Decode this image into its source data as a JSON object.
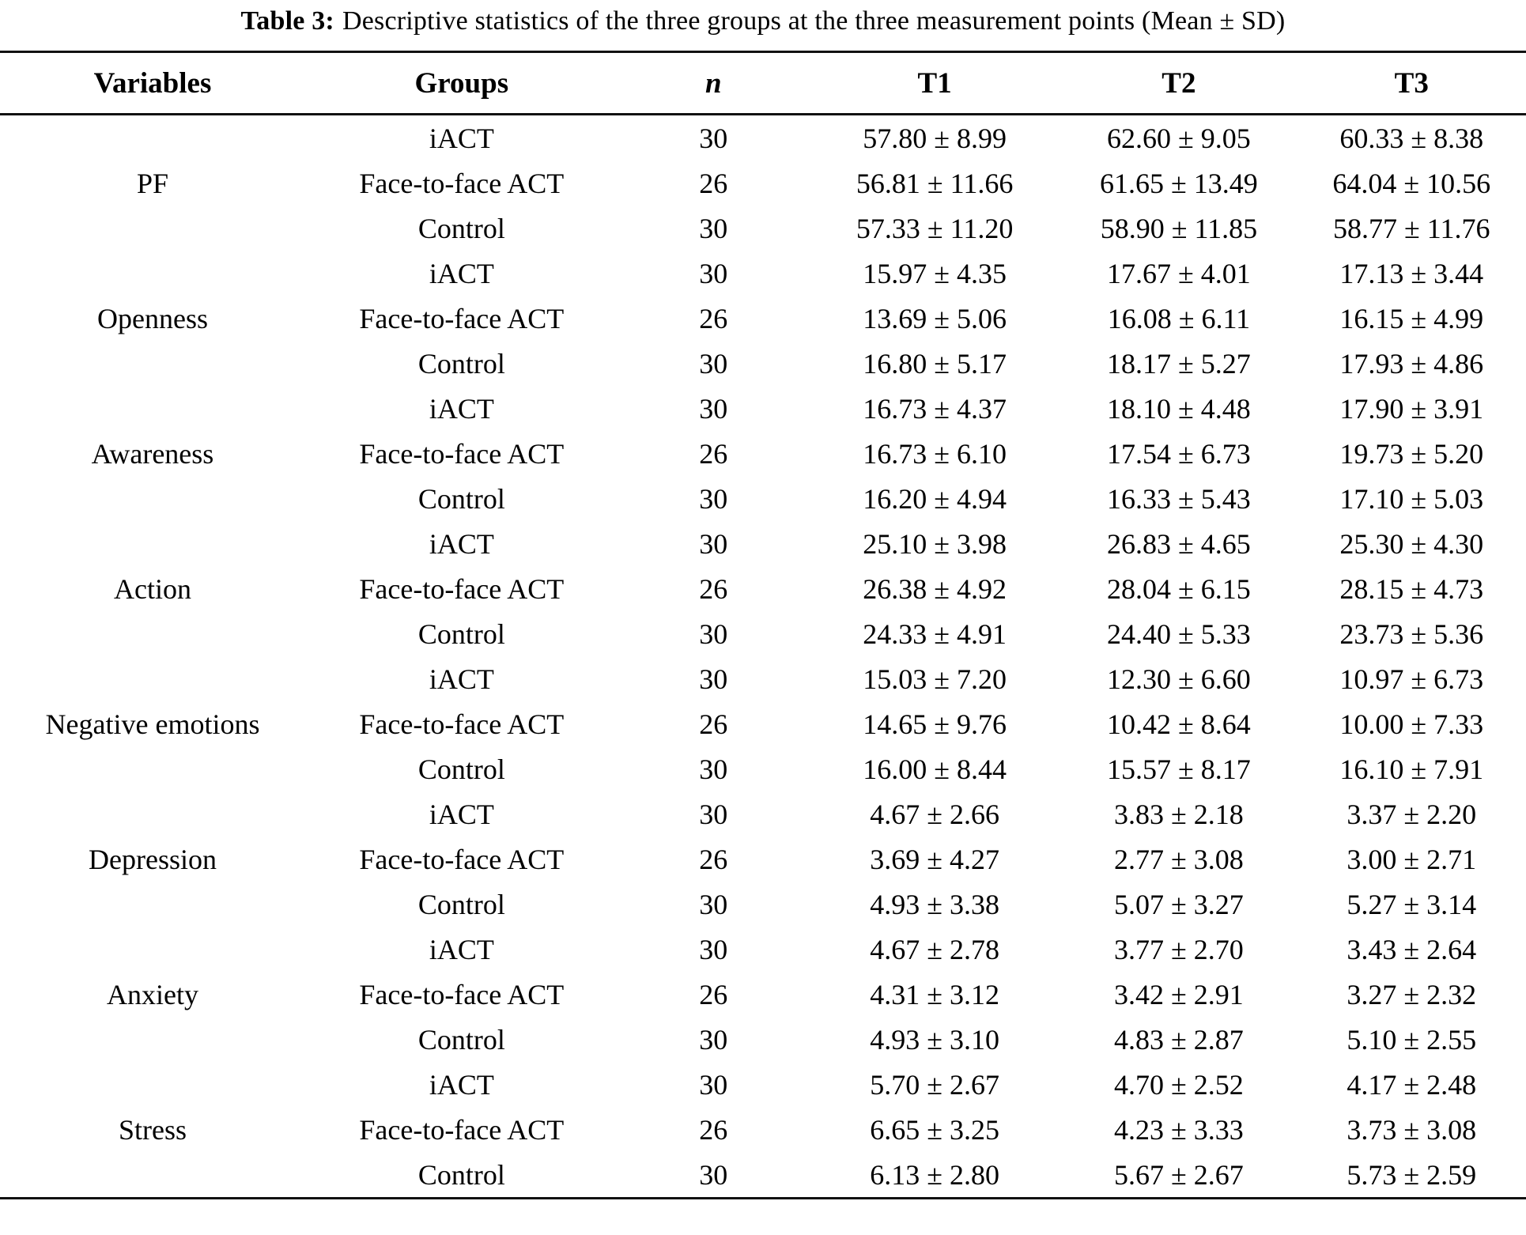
{
  "title": {
    "label": "Table 3:",
    "text": "Descriptive statistics of the three groups at the three measurement points (Mean ± SD)"
  },
  "table": {
    "columns": [
      "Variables",
      "Groups",
      "n",
      "T1",
      "T2",
      "T3"
    ],
    "variables": [
      {
        "name": "PF",
        "rows": [
          {
            "group": "iACT",
            "n": "30",
            "t1": "57.80 ± 8.99",
            "t2": "62.60 ± 9.05",
            "t3": "60.33 ± 8.38"
          },
          {
            "group": "Face-to-face ACT",
            "n": "26",
            "t1": "56.81 ± 11.66",
            "t2": "61.65 ± 13.49",
            "t3": "64.04 ± 10.56"
          },
          {
            "group": "Control",
            "n": "30",
            "t1": "57.33 ± 11.20",
            "t2": "58.90 ± 11.85",
            "t3": "58.77 ± 11.76"
          }
        ]
      },
      {
        "name": "Openness",
        "rows": [
          {
            "group": "iACT",
            "n": "30",
            "t1": "15.97 ± 4.35",
            "t2": "17.67 ± 4.01",
            "t3": "17.13 ± 3.44"
          },
          {
            "group": "Face-to-face ACT",
            "n": "26",
            "t1": "13.69 ± 5.06",
            "t2": "16.08 ± 6.11",
            "t3": "16.15 ± 4.99"
          },
          {
            "group": "Control",
            "n": "30",
            "t1": "16.80 ± 5.17",
            "t2": "18.17 ± 5.27",
            "t3": "17.93 ± 4.86"
          }
        ]
      },
      {
        "name": "Awareness",
        "rows": [
          {
            "group": "iACT",
            "n": "30",
            "t1": "16.73 ± 4.37",
            "t2": "18.10 ± 4.48",
            "t3": "17.90 ± 3.91"
          },
          {
            "group": "Face-to-face ACT",
            "n": "26",
            "t1": "16.73 ± 6.10",
            "t2": "17.54 ± 6.73",
            "t3": "19.73 ± 5.20"
          },
          {
            "group": "Control",
            "n": "30",
            "t1": "16.20 ± 4.94",
            "t2": "16.33 ± 5.43",
            "t3": "17.10 ± 5.03"
          }
        ]
      },
      {
        "name": "Action",
        "rows": [
          {
            "group": "iACT",
            "n": "30",
            "t1": "25.10 ± 3.98",
            "t2": "26.83 ± 4.65",
            "t3": "25.30 ± 4.30"
          },
          {
            "group": "Face-to-face ACT",
            "n": "26",
            "t1": "26.38 ± 4.92",
            "t2": "28.04 ± 6.15",
            "t3": "28.15 ± 4.73"
          },
          {
            "group": "Control",
            "n": "30",
            "t1": "24.33 ± 4.91",
            "t2": "24.40 ± 5.33",
            "t3": "23.73 ± 5.36"
          }
        ]
      },
      {
        "name": "Negative emotions",
        "rows": [
          {
            "group": "iACT",
            "n": "30",
            "t1": "15.03 ± 7.20",
            "t2": "12.30 ± 6.60",
            "t3": "10.97 ± 6.73"
          },
          {
            "group": "Face-to-face ACT",
            "n": "26",
            "t1": "14.65 ± 9.76",
            "t2": "10.42 ± 8.64",
            "t3": "10.00 ± 7.33"
          },
          {
            "group": "Control",
            "n": "30",
            "t1": "16.00 ± 8.44",
            "t2": "15.57 ± 8.17",
            "t3": "16.10 ± 7.91"
          }
        ]
      },
      {
        "name": "Depression",
        "rows": [
          {
            "group": "iACT",
            "n": "30",
            "t1": "4.67 ± 2.66",
            "t2": "3.83 ± 2.18",
            "t3": "3.37 ± 2.20"
          },
          {
            "group": "Face-to-face ACT",
            "n": "26",
            "t1": "3.69 ± 4.27",
            "t2": "2.77 ± 3.08",
            "t3": "3.00 ± 2.71"
          },
          {
            "group": "Control",
            "n": "30",
            "t1": "4.93 ± 3.38",
            "t2": "5.07 ± 3.27",
            "t3": "5.27 ± 3.14"
          }
        ]
      },
      {
        "name": "Anxiety",
        "rows": [
          {
            "group": "iACT",
            "n": "30",
            "t1": "4.67 ± 2.78",
            "t2": "3.77 ± 2.70",
            "t3": "3.43 ± 2.64"
          },
          {
            "group": "Face-to-face ACT",
            "n": "26",
            "t1": "4.31 ± 3.12",
            "t2": "3.42 ± 2.91",
            "t3": "3.27 ± 2.32"
          },
          {
            "group": "Control",
            "n": "30",
            "t1": "4.93 ± 3.10",
            "t2": "4.83 ± 2.87",
            "t3": "5.10 ± 2.55"
          }
        ]
      },
      {
        "name": "Stress",
        "rows": [
          {
            "group": "iACT",
            "n": "30",
            "t1": "5.70 ± 2.67",
            "t2": "4.70 ± 2.52",
            "t3": "4.17 ± 2.48"
          },
          {
            "group": "Face-to-face ACT",
            "n": "26",
            "t1": "6.65 ± 3.25",
            "t2": "4.23 ± 3.33",
            "t3": "3.73 ± 3.08"
          },
          {
            "group": "Control",
            "n": "30",
            "t1": "6.13 ± 2.80",
            "t2": "5.67 ± 2.67",
            "t3": "5.73 ± 2.59"
          }
        ]
      }
    ]
  }
}
